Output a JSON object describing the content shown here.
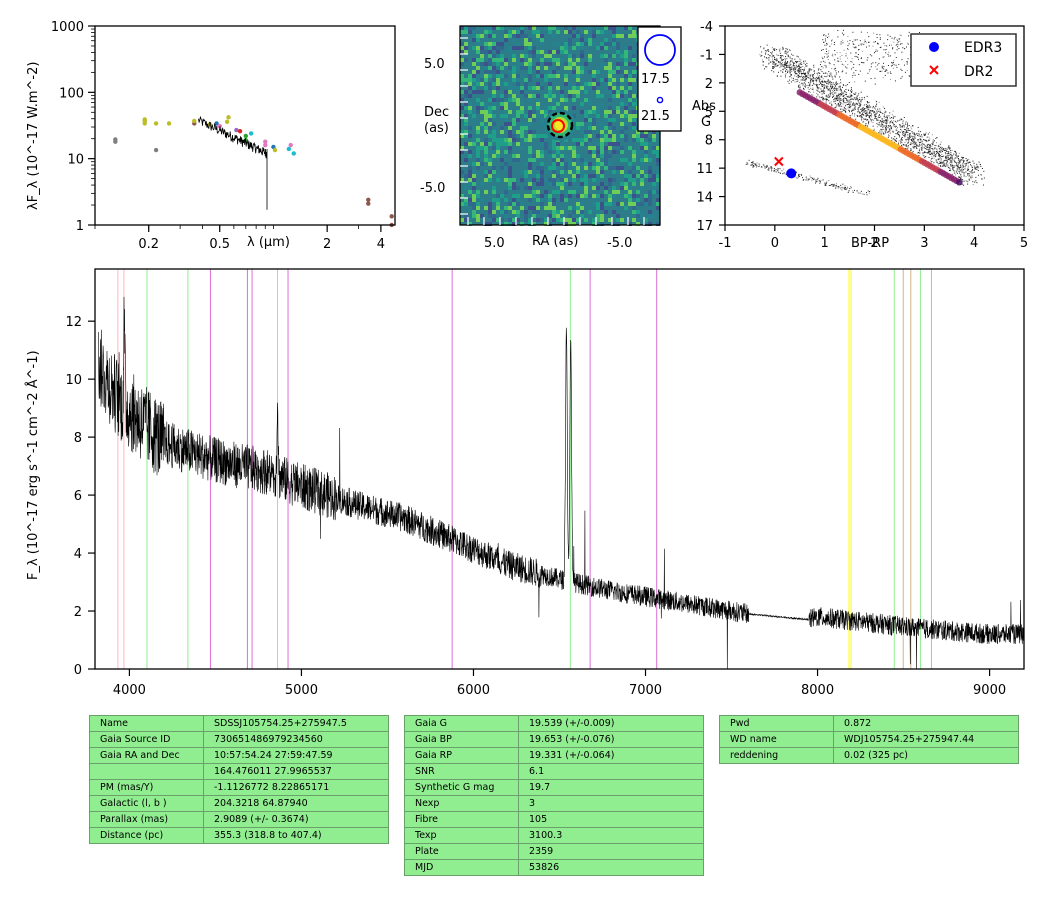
{
  "sed": {
    "ylabel": "λF_λ (10^-17 W.m^-2)",
    "xlabel": "λ (μm)",
    "xticks": [
      0.2,
      0.5,
      2,
      4
    ],
    "yticks": [
      1,
      10,
      100,
      1000
    ],
    "xlim": [
      0.1,
      4.8
    ],
    "ylim": [
      1,
      1000
    ],
    "log_x": true,
    "log_y": true,
    "points": [
      {
        "x": 0.13,
        "y": 18,
        "c": "#7f7f7f"
      },
      {
        "x": 0.13,
        "y": 19.5,
        "c": "#7f7f7f"
      },
      {
        "x": 0.19,
        "y": 34,
        "c": "#bcbd22"
      },
      {
        "x": 0.19,
        "y": 37,
        "c": "#bcbd22"
      },
      {
        "x": 0.19,
        "y": 39,
        "c": "#bcbd22"
      },
      {
        "x": 0.22,
        "y": 34,
        "c": "#bcbd22"
      },
      {
        "x": 0.22,
        "y": 13.5,
        "c": "#7f7f7f"
      },
      {
        "x": 0.26,
        "y": 34,
        "c": "#bcbd22"
      },
      {
        "x": 0.36,
        "y": 34,
        "c": "#8c564b"
      },
      {
        "x": 0.36,
        "y": 37,
        "c": "#bcbd22"
      },
      {
        "x": 0.44,
        "y": 33,
        "c": "#bcbd22"
      },
      {
        "x": 0.48,
        "y": 34,
        "c": "#1f77b4"
      },
      {
        "x": 0.5,
        "y": 31,
        "c": "#e377c2"
      },
      {
        "x": 0.55,
        "y": 36,
        "c": "#bcbd22"
      },
      {
        "x": 0.56,
        "y": 42,
        "c": "#bcbd22"
      },
      {
        "x": 0.62,
        "y": 27,
        "c": "#9467bd"
      },
      {
        "x": 0.65,
        "y": 26,
        "c": "#d62728"
      },
      {
        "x": 0.7,
        "y": 22,
        "c": "#2ca02c"
      },
      {
        "x": 0.7,
        "y": 19,
        "c": "#2ca02c"
      },
      {
        "x": 0.75,
        "y": 24,
        "c": "#17becf"
      },
      {
        "x": 0.9,
        "y": 16,
        "c": "#e377c2"
      },
      {
        "x": 0.9,
        "y": 18,
        "c": "#e377c2"
      },
      {
        "x": 1.0,
        "y": 15,
        "c": "#1f77b4"
      },
      {
        "x": 1.02,
        "y": 13.5,
        "c": "#bcbd22"
      },
      {
        "x": 1.22,
        "y": 14,
        "c": "#17becf"
      },
      {
        "x": 1.25,
        "y": 16,
        "c": "#e377c2"
      },
      {
        "x": 1.3,
        "y": 12,
        "c": "#17becf"
      },
      {
        "x": 3.4,
        "y": 2.1,
        "c": "#8c564b"
      },
      {
        "x": 3.4,
        "y": 2.4,
        "c": "#8c564b"
      },
      {
        "x": 4.6,
        "y": 1.35,
        "c": "#8c564b"
      },
      {
        "x": 4.6,
        "y": 1.0,
        "c": "#8c564b"
      }
    ]
  },
  "stamp": {
    "ylabel_line1": "Dec",
    "ylabel_line2": "(as)",
    "xlabel": "RA (as)",
    "yticks": [
      "5.0",
      "-5.0"
    ],
    "xticks": [
      "5.0",
      "-5.0"
    ],
    "legend_mag_1": "17.5",
    "legend_mag_2": "21.5",
    "accent_target": "#000000",
    "accent_gaia": "#ff0000",
    "accent_legend": "#0000ff"
  },
  "hr": {
    "ylabel_line1": "Abs",
    "ylabel_line2": "G",
    "xlabel": "BP-RP",
    "yticks": [
      "-4",
      "-1",
      "2",
      "5",
      "8",
      "11",
      "14",
      "17"
    ],
    "xticks": [
      "-1",
      "0",
      "1",
      "2",
      "3",
      "4",
      "5"
    ],
    "xlim": [
      -1,
      5
    ],
    "ylim": [
      17,
      -4
    ],
    "edr3_label": "EDR3",
    "dr2_label": "DR2",
    "edr3": {
      "x": 0.33,
      "y": 11.55
    },
    "dr2": {
      "x": 0.08,
      "y": 10.3
    },
    "edr3_color": "#0000ff",
    "dr2_color": "#ff0000"
  },
  "chart_data": {
    "type": "line",
    "xlabel": "",
    "ylabel": "F_λ (10^-17 erg s^-1 cm^-2 Å^-1)",
    "xlim": [
      3800,
      9200
    ],
    "ylim": [
      0,
      13.8
    ],
    "xticks": [
      4000,
      5000,
      6000,
      7000,
      8000,
      9000
    ],
    "yticks": [
      0,
      2,
      4,
      6,
      8,
      10,
      12
    ],
    "continuum_anchors": [
      [
        3820,
        10.5
      ],
      [
        3950,
        9.2
      ],
      [
        4200,
        7.8
      ],
      [
        4500,
        7.2
      ],
      [
        4800,
        6.8
      ],
      [
        5000,
        6.3
      ],
      [
        5300,
        5.7
      ],
      [
        5600,
        5.2
      ],
      [
        5900,
        4.4
      ],
      [
        6200,
        3.6
      ],
      [
        6500,
        3.1
      ],
      [
        6800,
        2.7
      ],
      [
        7200,
        2.3
      ],
      [
        7600,
        1.9
      ],
      [
        7950,
        1.7
      ],
      [
        8000,
        1.8
      ],
      [
        8300,
        1.6
      ],
      [
        8600,
        1.4
      ],
      [
        9000,
        1.2
      ],
      [
        9200,
        1.2
      ]
    ],
    "emission_lines": [
      {
        "x": 3970,
        "h": 2.8,
        "w": 5
      },
      {
        "x": 4861,
        "h": 2.6,
        "w": 5
      },
      {
        "x": 6540,
        "h": 8.8,
        "w": 7
      },
      {
        "x": 6565,
        "h": 8.4,
        "w": 7
      }
    ],
    "reference_lines": [
      {
        "x": 3933,
        "color": "#ffb6c1"
      },
      {
        "x": 3968,
        "color": "#ffb6c1"
      },
      {
        "x": 4102,
        "color": "#90ee90"
      },
      {
        "x": 4340,
        "color": "#90ee90"
      },
      {
        "x": 4861,
        "color": "#90ee90"
      },
      {
        "x": 6563,
        "color": "#90ee90"
      },
      {
        "x": 4471,
        "color": "#da70d6"
      },
      {
        "x": 4686,
        "color": "#da70d6"
      },
      {
        "x": 4713,
        "color": "#da70d6"
      },
      {
        "x": 4922,
        "color": "#da70d6"
      },
      {
        "x": 5876,
        "color": "#da70d6"
      },
      {
        "x": 6678,
        "color": "#da70d6"
      },
      {
        "x": 7065,
        "color": "#da70d6"
      },
      {
        "x": 8183,
        "color": "#ffff00"
      },
      {
        "x": 8195,
        "color": "#ffff00"
      },
      {
        "x": 8446,
        "color": "#90ee90"
      },
      {
        "x": 8498,
        "color": "#d2b48c"
      },
      {
        "x": 8542,
        "color": "#d2b48c"
      },
      {
        "x": 8598,
        "color": "#90ee90"
      },
      {
        "x": 8662,
        "color": "#d2b48c"
      }
    ],
    "line_color": "#000000"
  },
  "table_left": [
    {
      "k": "Name",
      "v": "SDSSJ105754.25+275947.5"
    },
    {
      "k": "Gaia Source ID",
      "v": "730651486979234560"
    },
    {
      "k": "Gaia RA and Dec",
      "v": "10:57:54.24    27:59:47.59"
    },
    {
      "k": "",
      "v": "164.476011    27.9965537"
    },
    {
      "k": "PM (mas/Y)",
      "v": "-1.1126772    8.22865171"
    },
    {
      "k": "Galactic (l, b )",
      "v": "204.3218    64.87940"
    },
    {
      "k": "Parallax (mas)",
      "v": "2.9089 (+/- 0.3674)"
    },
    {
      "k": "Distance (pc)",
      "v": "355.3 (318.8 to 407.4)"
    }
  ],
  "table_mid": [
    {
      "k": "Gaia G",
      "v": "19.539 (+/-0.009)"
    },
    {
      "k": "Gaia BP",
      "v": "19.653 (+/-0.076)"
    },
    {
      "k": "Gaia RP",
      "v": "19.331 (+/-0.064)"
    },
    {
      "k": "SNR",
      "v": "6.1"
    },
    {
      "k": "Synthetic G mag",
      "v": "19.7"
    },
    {
      "k": "Nexp",
      "v": "3"
    },
    {
      "k": "Fibre",
      "v": "105"
    },
    {
      "k": "Texp",
      "v": "3100.3"
    },
    {
      "k": "Plate",
      "v": "2359"
    },
    {
      "k": "MJD",
      "v": "53826"
    }
  ],
  "table_right": [
    {
      "k": "Pwd",
      "v": "0.872"
    },
    {
      "k": "WD name",
      "v": "WDJ105754.25+275947.44"
    },
    {
      "k": "reddening",
      "v": "0.02 (325 pc)"
    }
  ],
  "table_color": "#90ee90"
}
